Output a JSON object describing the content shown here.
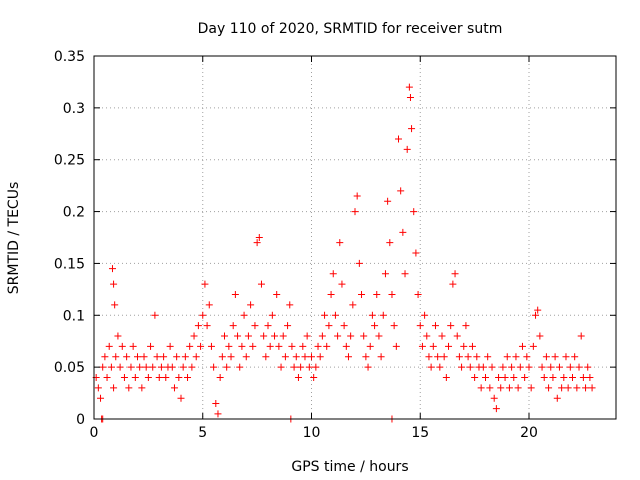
{
  "chart_data": {
    "type": "scatter",
    "title": "Day 110 of 2020, SRMTID for receiver sutm",
    "xlabel": "GPS time / hours",
    "ylabel": "SRMTID / TECUs",
    "xlim": [
      0,
      24
    ],
    "ylim": [
      0,
      0.35
    ],
    "xticks": [
      0,
      5,
      10,
      15,
      20
    ],
    "xtick_labels": [
      "0",
      "5",
      "10",
      "15",
      "20"
    ],
    "yticks": [
      0,
      0.05,
      0.1,
      0.15,
      0.2,
      0.25,
      0.3,
      0.35
    ],
    "ytick_labels": [
      "0",
      "0.05",
      "0.1",
      "0.15",
      "0.2",
      "0.25",
      "0.3",
      "0.35"
    ],
    "grid": true,
    "marker": "+",
    "series": [
      {
        "name": "SRMTID",
        "color": "#ff0000",
        "points": [
          [
            0.1,
            0.04
          ],
          [
            0.2,
            0.03
          ],
          [
            0.3,
            0.02
          ],
          [
            0.4,
            0.05
          ],
          [
            0.5,
            0.06
          ],
          [
            0.6,
            0.04
          ],
          [
            0.7,
            0.07
          ],
          [
            0.8,
            0.05
          ],
          [
            0.9,
            0.03
          ],
          [
            1.0,
            0.06
          ],
          [
            0.85,
            0.145
          ],
          [
            0.9,
            0.13
          ],
          [
            0.95,
            0.11
          ],
          [
            1.1,
            0.08
          ],
          [
            1.2,
            0.05
          ],
          [
            1.3,
            0.07
          ],
          [
            1.4,
            0.04
          ],
          [
            1.5,
            0.06
          ],
          [
            1.6,
            0.03
          ],
          [
            1.7,
            0.05
          ],
          [
            1.8,
            0.07
          ],
          [
            1.9,
            0.04
          ],
          [
            2.0,
            0.06
          ],
          [
            2.1,
            0.05
          ],
          [
            2.2,
            0.03
          ],
          [
            2.3,
            0.06
          ],
          [
            2.4,
            0.05
          ],
          [
            2.5,
            0.04
          ],
          [
            2.6,
            0.07
          ],
          [
            2.7,
            0.05
          ],
          [
            2.8,
            0.1
          ],
          [
            2.9,
            0.06
          ],
          [
            3.0,
            0.04
          ],
          [
            3.1,
            0.05
          ],
          [
            3.2,
            0.06
          ],
          [
            3.3,
            0.04
          ],
          [
            3.4,
            0.05
          ],
          [
            3.5,
            0.07
          ],
          [
            3.6,
            0.05
          ],
          [
            3.7,
            0.03
          ],
          [
            3.8,
            0.06
          ],
          [
            3.9,
            0.04
          ],
          [
            4.0,
            0.02
          ],
          [
            4.1,
            0.05
          ],
          [
            4.2,
            0.06
          ],
          [
            4.3,
            0.04
          ],
          [
            4.4,
            0.07
          ],
          [
            4.5,
            0.05
          ],
          [
            4.6,
            0.08
          ],
          [
            4.7,
            0.06
          ],
          [
            4.8,
            0.09
          ],
          [
            4.9,
            0.07
          ],
          [
            5.0,
            0.1
          ],
          [
            5.1,
            0.13
          ],
          [
            5.2,
            0.09
          ],
          [
            5.3,
            0.11
          ],
          [
            5.4,
            0.07
          ],
          [
            5.5,
            0.05
          ],
          [
            5.6,
            0.015
          ],
          [
            5.7,
            0.005
          ],
          [
            5.8,
            0.04
          ],
          [
            5.9,
            0.06
          ],
          [
            6.0,
            0.08
          ],
          [
            6.1,
            0.05
          ],
          [
            6.2,
            0.07
          ],
          [
            6.3,
            0.06
          ],
          [
            6.4,
            0.09
          ],
          [
            6.5,
            0.12
          ],
          [
            6.6,
            0.08
          ],
          [
            6.7,
            0.05
          ],
          [
            6.8,
            0.07
          ],
          [
            6.9,
            0.1
          ],
          [
            7.0,
            0.06
          ],
          [
            7.1,
            0.08
          ],
          [
            7.2,
            0.11
          ],
          [
            7.3,
            0.07
          ],
          [
            7.4,
            0.09
          ],
          [
            7.5,
            0.17
          ],
          [
            7.6,
            0.175
          ],
          [
            7.7,
            0.13
          ],
          [
            7.8,
            0.08
          ],
          [
            7.9,
            0.06
          ],
          [
            8.0,
            0.09
          ],
          [
            8.1,
            0.07
          ],
          [
            8.2,
            0.1
          ],
          [
            8.3,
            0.08
          ],
          [
            8.4,
            0.12
          ],
          [
            8.5,
            0.07
          ],
          [
            8.6,
            0.05
          ],
          [
            8.7,
            0.08
          ],
          [
            8.8,
            0.06
          ],
          [
            8.9,
            0.09
          ],
          [
            9.0,
            0.11
          ],
          [
            9.1,
            0.07
          ],
          [
            9.2,
            0.05
          ],
          [
            9.3,
            0.06
          ],
          [
            9.4,
            0.04
          ],
          [
            9.5,
            0.05
          ],
          [
            9.6,
            0.07
          ],
          [
            9.7,
            0.06
          ],
          [
            9.8,
            0.08
          ],
          [
            9.9,
            0.05
          ],
          [
            10.0,
            0.06
          ],
          [
            10.1,
            0.04
          ],
          [
            10.2,
            0.05
          ],
          [
            10.3,
            0.07
          ],
          [
            10.4,
            0.06
          ],
          [
            10.5,
            0.08
          ],
          [
            10.6,
            0.1
          ],
          [
            10.7,
            0.07
          ],
          [
            10.8,
            0.09
          ],
          [
            10.9,
            0.12
          ],
          [
            11.0,
            0.14
          ],
          [
            11.1,
            0.1
          ],
          [
            11.2,
            0.08
          ],
          [
            11.3,
            0.17
          ],
          [
            11.4,
            0.13
          ],
          [
            11.5,
            0.09
          ],
          [
            11.6,
            0.07
          ],
          [
            11.7,
            0.06
          ],
          [
            11.8,
            0.08
          ],
          [
            11.9,
            0.11
          ],
          [
            12.0,
            0.2
          ],
          [
            12.1,
            0.215
          ],
          [
            12.2,
            0.15
          ],
          [
            12.3,
            0.12
          ],
          [
            12.4,
            0.08
          ],
          [
            12.5,
            0.06
          ],
          [
            12.6,
            0.05
          ],
          [
            12.7,
            0.07
          ],
          [
            12.8,
            0.1
          ],
          [
            12.9,
            0.09
          ],
          [
            13.0,
            0.12
          ],
          [
            13.1,
            0.08
          ],
          [
            13.2,
            0.06
          ],
          [
            13.3,
            0.1
          ],
          [
            13.4,
            0.14
          ],
          [
            13.5,
            0.21
          ],
          [
            13.6,
            0.17
          ],
          [
            13.7,
            0.12
          ],
          [
            13.8,
            0.09
          ],
          [
            13.9,
            0.07
          ],
          [
            14.0,
            0.27
          ],
          [
            14.1,
            0.22
          ],
          [
            14.2,
            0.18
          ],
          [
            14.3,
            0.14
          ],
          [
            14.4,
            0.26
          ],
          [
            14.5,
            0.32
          ],
          [
            14.55,
            0.31
          ],
          [
            14.6,
            0.28
          ],
          [
            14.7,
            0.2
          ],
          [
            14.8,
            0.16
          ],
          [
            14.9,
            0.12
          ],
          [
            15.0,
            0.09
          ],
          [
            15.1,
            0.07
          ],
          [
            15.2,
            0.1
          ],
          [
            15.3,
            0.08
          ],
          [
            15.4,
            0.06
          ],
          [
            15.5,
            0.05
          ],
          [
            15.6,
            0.07
          ],
          [
            15.7,
            0.09
          ],
          [
            15.8,
            0.06
          ],
          [
            15.9,
            0.05
          ],
          [
            16.0,
            0.08
          ],
          [
            16.1,
            0.06
          ],
          [
            16.2,
            0.04
          ],
          [
            16.3,
            0.07
          ],
          [
            16.4,
            0.09
          ],
          [
            16.5,
            0.13
          ],
          [
            16.6,
            0.14
          ],
          [
            16.7,
            0.08
          ],
          [
            16.8,
            0.06
          ],
          [
            16.9,
            0.05
          ],
          [
            17.0,
            0.07
          ],
          [
            17.1,
            0.09
          ],
          [
            17.2,
            0.06
          ],
          [
            17.3,
            0.05
          ],
          [
            17.4,
            0.07
          ],
          [
            17.5,
            0.04
          ],
          [
            17.6,
            0.06
          ],
          [
            17.7,
            0.05
          ],
          [
            17.8,
            0.03
          ],
          [
            17.9,
            0.05
          ],
          [
            18.0,
            0.04
          ],
          [
            18.1,
            0.06
          ],
          [
            18.2,
            0.03
          ],
          [
            18.3,
            0.05
          ],
          [
            18.4,
            0.02
          ],
          [
            18.5,
            0.01
          ],
          [
            18.6,
            0.04
          ],
          [
            18.7,
            0.03
          ],
          [
            18.8,
            0.05
          ],
          [
            18.9,
            0.04
          ],
          [
            19.0,
            0.06
          ],
          [
            19.1,
            0.03
          ],
          [
            19.2,
            0.05
          ],
          [
            19.3,
            0.04
          ],
          [
            19.4,
            0.06
          ],
          [
            19.5,
            0.03
          ],
          [
            19.6,
            0.05
          ],
          [
            19.7,
            0.07
          ],
          [
            19.8,
            0.04
          ],
          [
            19.9,
            0.06
          ],
          [
            20.0,
            0.05
          ],
          [
            20.1,
            0.03
          ],
          [
            20.2,
            0.07
          ],
          [
            20.3,
            0.1
          ],
          [
            20.4,
            0.105
          ],
          [
            20.5,
            0.08
          ],
          [
            20.6,
            0.05
          ],
          [
            20.7,
            0.04
          ],
          [
            20.8,
            0.06
          ],
          [
            20.9,
            0.03
          ],
          [
            21.0,
            0.05
          ],
          [
            21.1,
            0.04
          ],
          [
            21.2,
            0.06
          ],
          [
            21.3,
            0.02
          ],
          [
            21.4,
            0.05
          ],
          [
            21.5,
            0.03
          ],
          [
            21.6,
            0.04
          ],
          [
            21.7,
            0.06
          ],
          [
            21.8,
            0.03
          ],
          [
            21.9,
            0.05
          ],
          [
            22.0,
            0.04
          ],
          [
            22.1,
            0.06
          ],
          [
            22.2,
            0.03
          ],
          [
            22.3,
            0.05
          ],
          [
            22.4,
            0.08
          ],
          [
            22.5,
            0.04
          ],
          [
            22.6,
            0.03
          ],
          [
            22.7,
            0.05
          ],
          [
            22.8,
            0.04
          ],
          [
            22.9,
            0.03
          ],
          [
            0.35,
            0.0
          ],
          [
            0.4,
            0.0
          ],
          [
            9.05,
            0.0
          ],
          [
            13.7,
            0.0
          ]
        ]
      }
    ]
  }
}
